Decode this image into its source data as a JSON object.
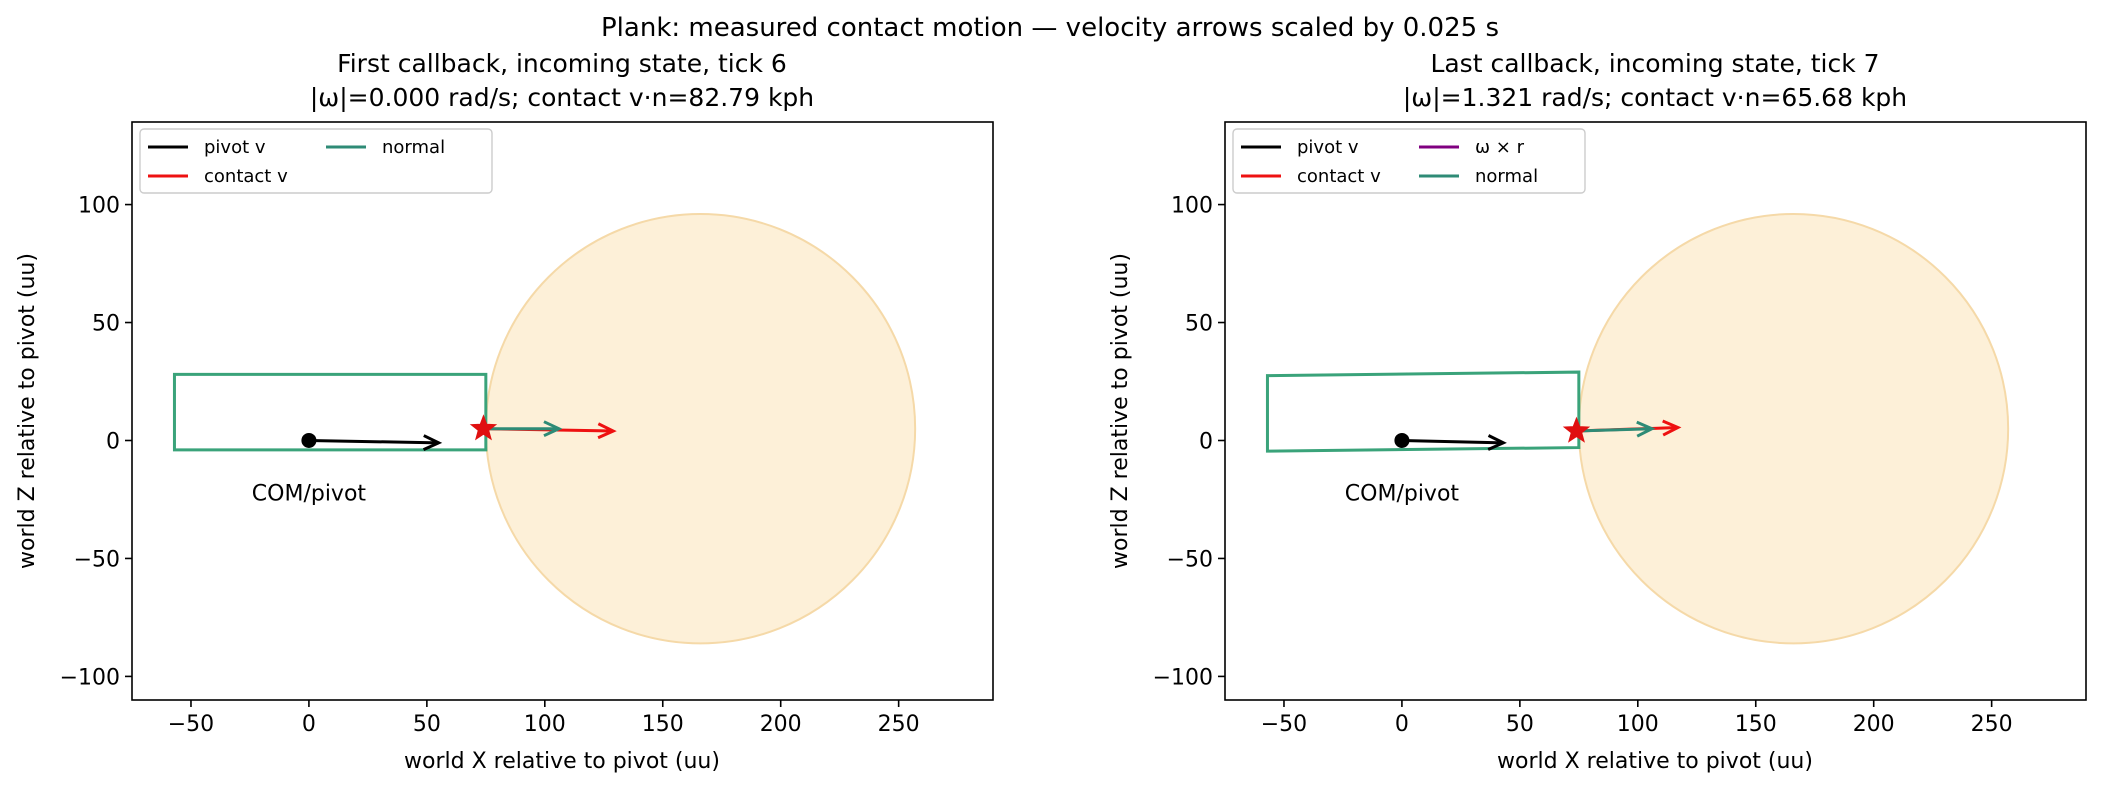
{
  "suptitle": "Plank: measured contact motion — velocity arrows scaled by 0.025 s",
  "colors": {
    "pivot_v": "#000000",
    "contact_v": "#ee1111",
    "omega_r": "#800080",
    "normal": "#2e8b76",
    "plank_outline": "#3aa37a",
    "ball_fill": "#fdf0d8",
    "ball_edge": "#f5d9a8",
    "star": "#e01010"
  },
  "chart_data": [
    {
      "type": "scatter",
      "title_line1": "First callback, incoming state, tick 6",
      "title_line2": "|ω|=0.000 rad/s; contact v·n=82.79 kph",
      "xlabel": "world X relative to pivot (uu)",
      "ylabel": "world Z relative to pivot (uu)",
      "xlim": [
        -75,
        290
      ],
      "ylim": [
        -110,
        135
      ],
      "xticks": [
        -50,
        0,
        50,
        100,
        150,
        200,
        250
      ],
      "yticks": [
        -100,
        -50,
        0,
        50,
        100
      ],
      "legend_position": "top-left",
      "legend_ncol": 2,
      "legend": [
        {
          "label": "pivot v",
          "color_key": "pivot_v"
        },
        {
          "label": "contact v",
          "color_key": "contact_v"
        },
        {
          "label": "normal",
          "color_key": "normal"
        }
      ],
      "plank_polygon": [
        [
          -57,
          28
        ],
        [
          75,
          28
        ],
        [
          75,
          -4
        ],
        [
          -57,
          -4
        ]
      ],
      "ball": {
        "cx": 166,
        "cy": 5,
        "r": 91
      },
      "pivot_point": [
        0,
        0
      ],
      "pivot_label": "COM/pivot",
      "pivot_label_pos": [
        0,
        -22
      ],
      "contact_point": [
        74,
        5
      ],
      "arrows": [
        {
          "name": "pivot-v",
          "color_key": "pivot_v",
          "from": [
            0,
            0
          ],
          "to": [
            55,
            -1
          ]
        },
        {
          "name": "contact-v",
          "color_key": "contact_v",
          "from": [
            74,
            5
          ],
          "to": [
            129,
            4
          ]
        },
        {
          "name": "normal",
          "color_key": "normal",
          "from": [
            74,
            5
          ],
          "to": [
            106,
            5
          ]
        }
      ]
    },
    {
      "type": "scatter",
      "title_line1": "Last callback, incoming state, tick 7",
      "title_line2": "|ω|=1.321 rad/s; contact v·n=65.68 kph",
      "xlabel": "world X relative to pivot (uu)",
      "ylabel": "world Z relative to pivot (uu)",
      "xlim": [
        -75,
        290
      ],
      "ylim": [
        -110,
        135
      ],
      "xticks": [
        -50,
        0,
        50,
        100,
        150,
        200,
        250
      ],
      "yticks": [
        -100,
        -50,
        0,
        50,
        100
      ],
      "legend_position": "top-left",
      "legend_ncol": 2,
      "legend": [
        {
          "label": "pivot v",
          "color_key": "pivot_v"
        },
        {
          "label": "contact v",
          "color_key": "contact_v"
        },
        {
          "label": "ω × r",
          "color_key": "omega_r"
        },
        {
          "label": "normal",
          "color_key": "normal"
        }
      ],
      "plank_polygon": [
        [
          -57,
          27.5
        ],
        [
          75,
          29
        ],
        [
          75,
          -3
        ],
        [
          -57,
          -4.5
        ]
      ],
      "ball": {
        "cx": 166,
        "cy": 5,
        "r": 91
      },
      "pivot_point": [
        0,
        0
      ],
      "pivot_label": "COM/pivot",
      "pivot_label_pos": [
        0,
        -22
      ],
      "contact_point": [
        74,
        4
      ],
      "arrows": [
        {
          "name": "pivot-v",
          "color_key": "pivot_v",
          "from": [
            0,
            0
          ],
          "to": [
            43,
            -1
          ]
        },
        {
          "name": "contact-v",
          "color_key": "contact_v",
          "from": [
            74,
            4
          ],
          "to": [
            117,
            5.5
          ]
        },
        {
          "name": "omega-r",
          "color_key": "omega_r",
          "from": [
            74,
            4
          ],
          "to": [
            74,
            4.5
          ]
        },
        {
          "name": "normal",
          "color_key": "normal",
          "from": [
            74,
            4
          ],
          "to": [
            106,
            5
          ]
        }
      ]
    }
  ]
}
